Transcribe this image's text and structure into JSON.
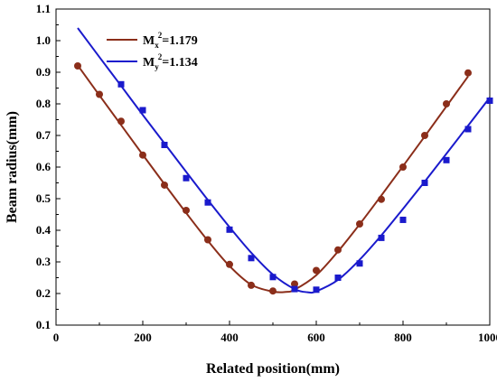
{
  "chart_data": {
    "type": "scatter",
    "xlabel": "Related position(mm)",
    "ylabel": "Beam radius(mm)",
    "xlim": [
      0,
      1000
    ],
    "ylim": [
      0.1,
      1.1
    ],
    "xticks": [
      0,
      200,
      400,
      600,
      800,
      1000
    ],
    "yticks": [
      0.1,
      0.2,
      0.3,
      0.4,
      0.5,
      0.6,
      0.7,
      0.8,
      0.9,
      1.0,
      1.1
    ],
    "x_tick_labels": [
      "0",
      "200",
      "400",
      "600",
      "800",
      "1000"
    ],
    "y_tick_labels": [
      "0.1",
      "0.2",
      "0.3",
      "0.4",
      "0.5",
      "0.6",
      "0.7",
      "0.8",
      "0.9",
      "1.0",
      "1.1"
    ],
    "grid": false,
    "legend_position": "top-left",
    "series": [
      {
        "label_base": "M",
        "label_sub": "x",
        "label_sup": "2",
        "label_value": "=1.179",
        "color": "#8b2e1a",
        "marker": "circle",
        "x": [
          50,
          100,
          150,
          200,
          250,
          300,
          350,
          400,
          450,
          500,
          550,
          600,
          650,
          700,
          750,
          800,
          850,
          900,
          950
        ],
        "y": [
          0.92,
          0.83,
          0.745,
          0.638,
          0.543,
          0.463,
          0.37,
          0.292,
          0.226,
          0.208,
          0.23,
          0.273,
          0.338,
          0.42,
          0.498,
          0.6,
          0.7,
          0.8,
          0.898
        ],
        "fit_x": [
          50,
          100,
          150,
          200,
          250,
          300,
          350,
          400,
          450,
          500,
          530,
          550,
          600,
          650,
          700,
          750,
          800,
          850,
          900,
          950
        ],
        "fit_y": [
          0.922,
          0.827,
          0.733,
          0.639,
          0.546,
          0.455,
          0.367,
          0.287,
          0.228,
          0.206,
          0.205,
          0.212,
          0.258,
          0.333,
          0.419,
          0.51,
          0.603,
          0.697,
          0.792,
          0.887
        ]
      },
      {
        "label_base": "M",
        "label_sub": "y",
        "label_sup": "2",
        "label_value": "=1.134",
        "color": "#1a1acc",
        "marker": "square",
        "x": [
          150,
          200,
          250,
          300,
          350,
          400,
          450,
          500,
          550,
          600,
          650,
          700,
          750,
          800,
          850,
          900,
          950,
          1000
        ],
        "y": [
          0.862,
          0.78,
          0.67,
          0.565,
          0.488,
          0.402,
          0.312,
          0.252,
          0.214,
          0.212,
          0.25,
          0.295,
          0.376,
          0.433,
          0.55,
          0.622,
          0.72,
          0.81
        ],
        "fit_x": [
          50,
          100,
          150,
          200,
          250,
          300,
          350,
          400,
          450,
          500,
          550,
          580,
          600,
          650,
          700,
          750,
          800,
          850,
          900,
          950,
          1000
        ],
        "fit_y": [
          1.04,
          0.948,
          0.857,
          0.765,
          0.675,
          0.585,
          0.496,
          0.41,
          0.329,
          0.26,
          0.214,
          0.204,
          0.207,
          0.243,
          0.307,
          0.384,
          0.468,
          0.554,
          0.642,
          0.731,
          0.82
        ]
      }
    ]
  }
}
